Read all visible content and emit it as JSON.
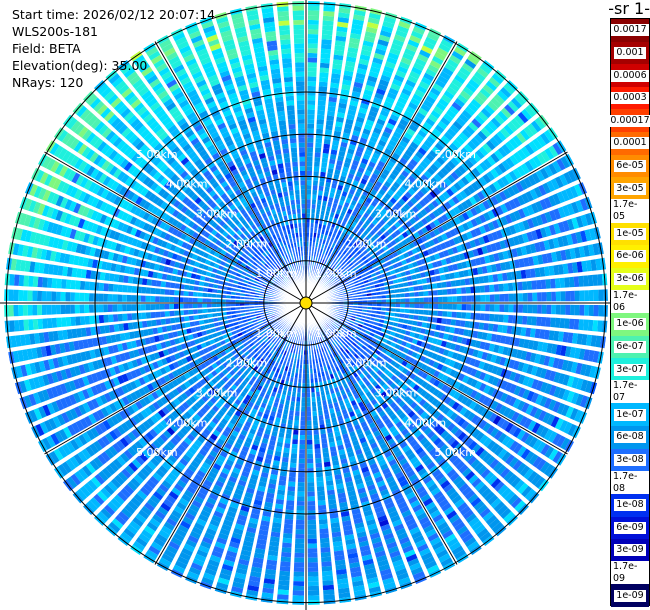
{
  "header": {
    "start_time": "Start time: 2026/02/12 20:07:14",
    "instrument": "WLS200s-181",
    "field": "Field: BETA",
    "elevation": "Elevation(deg): 35.00",
    "nrays": "NRays: 120"
  },
  "colorbar": {
    "units_label": "-1 sr-",
    "ticks": [
      "0.0017",
      "0.001",
      "0.0006",
      "0.0003",
      "0.00017",
      "0.0001",
      "6e-05",
      "3e-05",
      "1.7e-05",
      "1e-05",
      "6e-06",
      "3e-06",
      "1.7e-06",
      "1e-06",
      "6e-07",
      "3e-07",
      "1.7e-07",
      "1e-07",
      "6e-08",
      "3e-08",
      "1.7e-08",
      "1e-08",
      "6e-09",
      "3e-09",
      "1.7e-09",
      "1e-09"
    ],
    "colors": [
      "#8b0000",
      "#a50000",
      "#cf0000",
      "#ff1a00",
      "#ff4000",
      "#ff6a00",
      "#ff8c00",
      "#ffa500",
      "#ffc300",
      "#ffe000",
      "#fff000",
      "#e5ff1a",
      "#c0ff3e",
      "#7ff77f",
      "#4ef2b0",
      "#1ff0dd",
      "#00e0ff",
      "#00b8ff",
      "#0096ee",
      "#1e6eff",
      "#0050ff",
      "#0030f0",
      "#0010d8",
      "#0000b8",
      "#000090",
      "#000060"
    ]
  },
  "chart_data": {
    "type": "heatmap",
    "projection": "polar (PPI)",
    "rings_km": [
      1,
      2,
      3,
      4,
      5
    ],
    "ring_labels": [
      "1.00km",
      "2.00km",
      "3.00km",
      "4.00km",
      "5.00km"
    ],
    "max_range_km": 7.1,
    "n_rays": 120,
    "field": "BETA",
    "elevation_deg": 35.0,
    "colorbar_ticks": [
      "0.0017",
      "0.001",
      "0.0006",
      "0.0003",
      "0.00017",
      "0.0001",
      "6e-05",
      "3e-05",
      "1.7e-05",
      "1e-05",
      "6e-06",
      "3e-06",
      "1.7e-06",
      "1e-06",
      "6e-07",
      "3e-07",
      "1.7e-07",
      "1e-07",
      "6e-08",
      "3e-08",
      "1.7e-08",
      "1e-08",
      "6e-09",
      "3e-09",
      "1.7e-09",
      "1e-09"
    ],
    "north_enhancement_arc_deg": [
      -95,
      60
    ],
    "typical_level": "3e-08 to 1e-07",
    "enhanced_level_north": "1e-06 to 1e-05"
  }
}
